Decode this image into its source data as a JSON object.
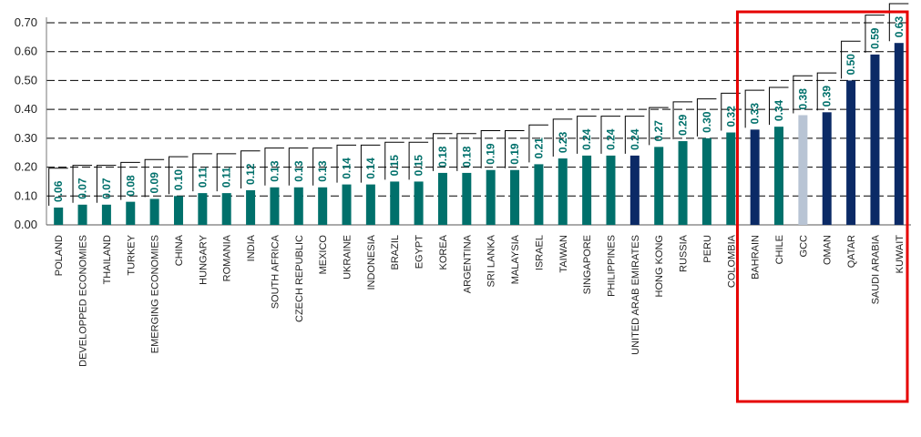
{
  "chart_data": {
    "type": "bar",
    "ylim": [
      0,
      0.7
    ],
    "y_ticks": [
      "0.00",
      "0.10",
      "0.20",
      "0.30",
      "0.40",
      "0.50",
      "0.60",
      "0.70"
    ],
    "grid": true,
    "categories": [
      "POLAND",
      "DEVELOPPED ECONOMIES",
      "THAILAND",
      "TURKEY",
      "EMERGING ECONOMIES",
      "CHINA",
      "HUNGARY",
      "ROMANIA",
      "INDIA",
      "SOUTH AFRICA",
      "CZECH REPUBLIC",
      "MEXICO",
      "UKRAINE",
      "INDONESIA",
      "BRAZIL",
      "EGYPT",
      "KOREA",
      "ARGENTINA",
      "SRI LANKA",
      "MALAYSIA",
      "ISRAEL",
      "TAIWAN",
      "SINGAPORE",
      "PHILIPPINES",
      "UNITED ARAB EMIRATES",
      "HONG KONG",
      "RUSSIA",
      "PERU",
      "COLOMBIA",
      "BAHRAIN",
      "CHILE",
      "GCC",
      "OMAN",
      "QATAR",
      "SAUDI ARABIA",
      "KUWAIT"
    ],
    "values": [
      0.06,
      0.07,
      0.07,
      0.08,
      0.09,
      0.1,
      0.11,
      0.11,
      0.12,
      0.13,
      0.13,
      0.13,
      0.14,
      0.14,
      0.15,
      0.15,
      0.18,
      0.18,
      0.19,
      0.19,
      0.21,
      0.23,
      0.24,
      0.24,
      0.24,
      0.27,
      0.29,
      0.3,
      0.32,
      0.33,
      0.34,
      0.38,
      0.39,
      0.5,
      0.59,
      0.63
    ],
    "value_labels": [
      "0.06",
      "0.07",
      "0.07",
      "0.08",
      "0.09",
      "0.10",
      "0.11",
      "0.11",
      "0.12",
      "0.13",
      "0.13",
      "0.13",
      "0.14",
      "0.14",
      "0.15",
      "0.15",
      "0.18",
      "0.18",
      "0.19",
      "0.19",
      "0.21",
      "0.23",
      "0.24",
      "0.24",
      "0.24",
      "0.27",
      "0.29",
      "0.30",
      "0.32",
      "0.33",
      "0.34",
      "0.38",
      "0.39",
      "0.50",
      "0.59",
      "0.63"
    ],
    "bar_colors": [
      "#00706b",
      "#00706b",
      "#00706b",
      "#00706b",
      "#00706b",
      "#00706b",
      "#00706b",
      "#00706b",
      "#00706b",
      "#00706b",
      "#00706b",
      "#00706b",
      "#00706b",
      "#00706b",
      "#00706b",
      "#00706b",
      "#00706b",
      "#00706b",
      "#00706b",
      "#00706b",
      "#00706b",
      "#00706b",
      "#00706b",
      "#00706b",
      "#0b2a66",
      "#00706b",
      "#00706b",
      "#00706b",
      "#00706b",
      "#0b2a66",
      "#00706b",
      "#b8c4d4",
      "#0b2a66",
      "#0b2a66",
      "#0b2a66",
      "#0b2a66"
    ],
    "highlight_box": {
      "from_category": "BAHRAIN",
      "to_category": "KUWAIT",
      "color": "#e60000"
    },
    "colors": {
      "teal": "#00706b",
      "navy": "#0b2a66",
      "gcc": "#b8c4d4",
      "label_teal": "#00706b"
    }
  }
}
